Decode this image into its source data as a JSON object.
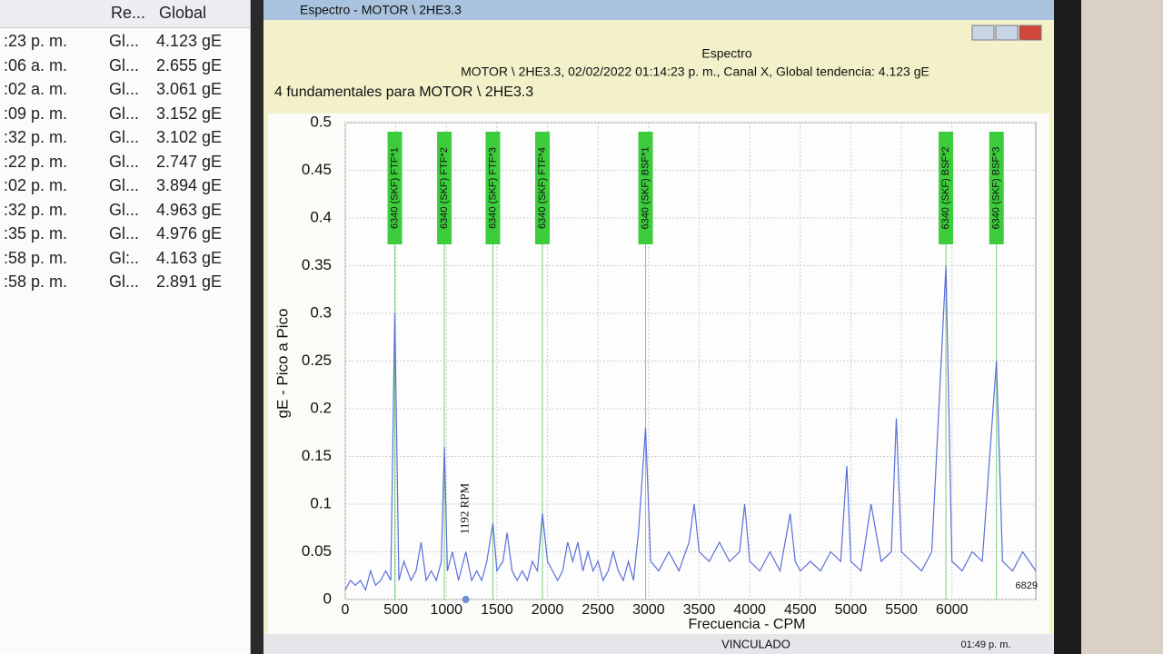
{
  "list": {
    "headers": [
      "Re...",
      "Global"
    ],
    "rows": [
      [
        ":23 p. m.",
        "Gl...",
        "4.123 gE"
      ],
      [
        ":06 a. m.",
        "Gl...",
        "2.655 gE"
      ],
      [
        ":02 a. m.",
        "Gl...",
        "3.061 gE"
      ],
      [
        ":09 p. m.",
        "Gl...",
        "3.152 gE"
      ],
      [
        ":32 p. m.",
        "Gl...",
        "3.102 gE"
      ],
      [
        ":22 p. m.",
        "Gl...",
        "2.747 gE"
      ],
      [
        ":02 p. m.",
        "Gl...",
        "3.894 gE"
      ],
      [
        ":32 p. m.",
        "Gl...",
        "4.963 gE"
      ],
      [
        ":35 p. m.",
        "Gl...",
        "4.976 gE"
      ],
      [
        ":58 p. m.",
        "Gl:..",
        "4.163 gE"
      ],
      [
        ":58 p. m.",
        "Gl...",
        "2.891 gE"
      ]
    ]
  },
  "window": {
    "title": "Espectro - MOTOR \\ 2HE3.3",
    "status": "VINCULADO",
    "clock": "01:49 p. m."
  },
  "chart_data": {
    "type": "line",
    "title": "Espectro",
    "subtitle": "MOTOR \\ 2HE3.3, 02/02/2022 01:14:23 p. m., Canal X, Global tendencia: 4.123 gE",
    "note": "4 fundamentales para MOTOR \\ 2HE3.3",
    "x_label": "Frecuencia - CPM",
    "y_label": "gE - Pico a Pico",
    "xlim": [
      0,
      6829
    ],
    "ylim": [
      0,
      0.5
    ],
    "xticks": [
      0,
      500,
      1000,
      1500,
      2000,
      2500,
      3000,
      3500,
      4000,
      4500,
      5000,
      5500,
      6000
    ],
    "yticks": [
      0,
      0.05,
      0.1,
      0.15,
      0.2,
      0.25,
      0.3,
      0.35,
      0.4,
      0.45,
      0.5
    ],
    "grid": true,
    "color": "#5a6fd8",
    "x": [
      0,
      50,
      100,
      150,
      200,
      250,
      300,
      350,
      400,
      450,
      490,
      530,
      580,
      650,
      700,
      750,
      800,
      850,
      900,
      950,
      980,
      1010,
      1060,
      1120,
      1192,
      1250,
      1300,
      1350,
      1400,
      1460,
      1500,
      1560,
      1600,
      1650,
      1700,
      1750,
      1800,
      1850,
      1900,
      1950,
      2000,
      2050,
      2100,
      2150,
      2200,
      2250,
      2300,
      2350,
      2400,
      2450,
      2500,
      2550,
      2600,
      2650,
      2700,
      2750,
      2800,
      2850,
      2900,
      2970,
      3020,
      3100,
      3200,
      3300,
      3400,
      3450,
      3500,
      3600,
      3700,
      3800,
      3900,
      3950,
      4000,
      4100,
      4200,
      4300,
      4400,
      4450,
      4500,
      4600,
      4700,
      4800,
      4900,
      4960,
      5000,
      5100,
      5200,
      5300,
      5400,
      5450,
      5500,
      5600,
      5700,
      5800,
      5940,
      6000,
      6100,
      6200,
      6300,
      6440,
      6500,
      6600,
      6700,
      6829
    ],
    "values": [
      0.01,
      0.02,
      0.015,
      0.02,
      0.01,
      0.03,
      0.015,
      0.02,
      0.03,
      0.02,
      0.3,
      0.02,
      0.04,
      0.02,
      0.03,
      0.06,
      0.02,
      0.03,
      0.02,
      0.04,
      0.16,
      0.03,
      0.05,
      0.02,
      0.05,
      0.02,
      0.03,
      0.02,
      0.04,
      0.08,
      0.03,
      0.04,
      0.07,
      0.03,
      0.02,
      0.03,
      0.02,
      0.04,
      0.03,
      0.09,
      0.04,
      0.03,
      0.02,
      0.03,
      0.06,
      0.04,
      0.06,
      0.03,
      0.05,
      0.03,
      0.04,
      0.02,
      0.03,
      0.05,
      0.03,
      0.02,
      0.04,
      0.02,
      0.07,
      0.18,
      0.04,
      0.03,
      0.05,
      0.03,
      0.06,
      0.1,
      0.05,
      0.04,
      0.06,
      0.04,
      0.05,
      0.1,
      0.04,
      0.03,
      0.05,
      0.03,
      0.09,
      0.04,
      0.03,
      0.04,
      0.03,
      0.05,
      0.04,
      0.14,
      0.04,
      0.03,
      0.1,
      0.04,
      0.05,
      0.19,
      0.05,
      0.04,
      0.03,
      0.05,
      0.35,
      0.04,
      0.03,
      0.05,
      0.04,
      0.25,
      0.04,
      0.03,
      0.05,
      0.03
    ],
    "markers": [
      {
        "x": 490,
        "label": "6340 (SKF) FTF*1"
      },
      {
        "x": 980,
        "label": "6340 (SKF) FTF*2"
      },
      {
        "x": 1460,
        "label": "6340 (SKF) FTF*3"
      },
      {
        "x": 1950,
        "label": "6340 (SKF) FTF*4"
      },
      {
        "x": 2970,
        "label": "6340 (SKF) BSF*1"
      },
      {
        "x": 5940,
        "label": "6340 (SKF) BSF*2"
      },
      {
        "x": 6440,
        "label": "6340 (SKF) BSF*3"
      }
    ],
    "annotations": [
      {
        "x": 1192,
        "text": "1192 RPM"
      }
    ]
  }
}
